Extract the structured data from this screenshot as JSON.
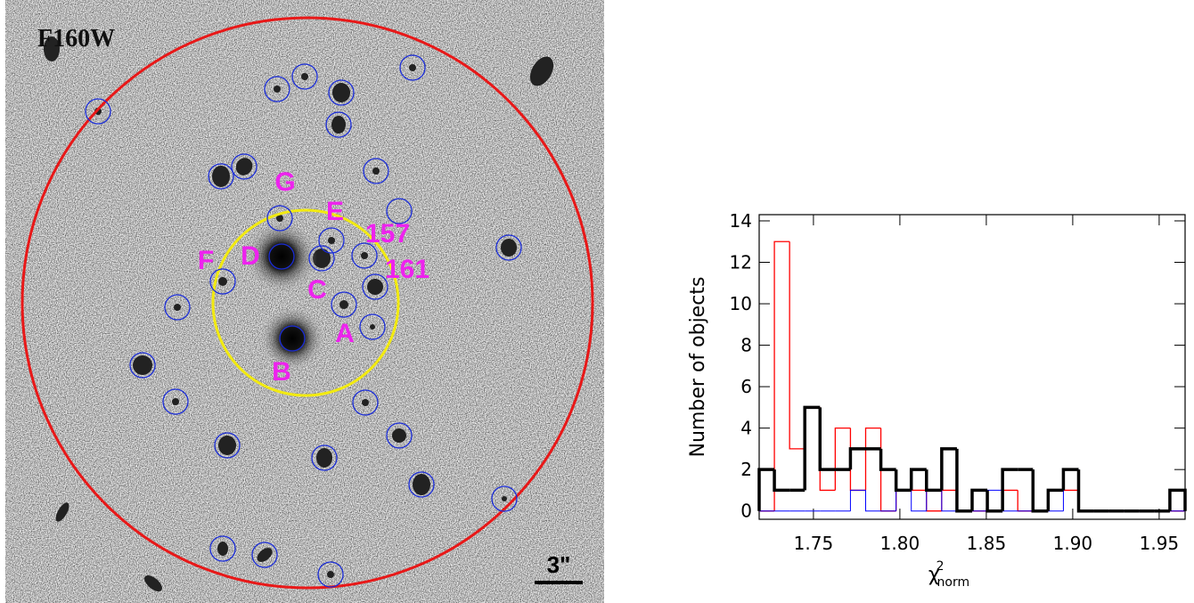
{
  "image": {
    "filter_label": "F160W",
    "scale_label": "3\"",
    "labels": [
      "G",
      "E",
      "157",
      "F",
      "D",
      "C",
      "161",
      "A",
      "B"
    ]
  },
  "chart_data": {
    "type": "histogram",
    "y_label": "Number of objects",
    "x_label": {
      "symbol": "χ",
      "sup": "2",
      "sub": "norm"
    },
    "bins": [
      1.7186,
      1.7274,
      1.7362,
      1.745,
      1.7538,
      1.7626,
      1.7714,
      1.7802,
      1.789,
      1.7978,
      1.8066,
      1.8154,
      1.8242,
      1.833,
      1.8418,
      1.8506,
      1.8594,
      1.8682,
      1.877,
      1.8858,
      1.8946,
      1.9034,
      1.9122,
      1.921,
      1.9298,
      1.9386,
      1.9474,
      1.9562,
      1.965
    ],
    "series": [
      {
        "color": "#ff0000",
        "width": 1.3,
        "values": [
          0,
          13,
          3,
          5,
          1,
          4,
          1,
          4,
          0,
          1,
          1,
          0,
          1,
          0,
          0,
          0,
          1,
          0,
          0,
          1,
          1,
          0,
          0,
          0,
          0,
          0,
          0,
          0
        ]
      },
      {
        "color": "#0000ff",
        "width": 1,
        "values": [
          0,
          0,
          0,
          0,
          0,
          0,
          1,
          0,
          0,
          1,
          0,
          1,
          0,
          0,
          0,
          1,
          0,
          0,
          0,
          0,
          2,
          0,
          0,
          0,
          0,
          0,
          0,
          0
        ]
      },
      {
        "color": "#000000",
        "width": 3.5,
        "values": [
          2,
          1,
          1,
          5,
          2,
          2,
          3,
          3,
          2,
          1,
          2,
          1,
          3,
          0,
          1,
          0,
          2,
          2,
          0,
          1,
          2,
          0,
          0,
          0,
          0,
          0,
          0,
          1
        ]
      }
    ],
    "xlim": [
      1.7186,
      1.965
    ],
    "xticks": [
      1.75,
      {
        "value": 1.8,
        "label": "1.80"
      },
      1.85,
      {
        "value": 1.9,
        "label": "1.90"
      },
      1.95
    ],
    "ylim": [
      -0.4,
      14.3
    ],
    "yticks": [
      0,
      2,
      4,
      6,
      8,
      10,
      12,
      14
    ]
  }
}
